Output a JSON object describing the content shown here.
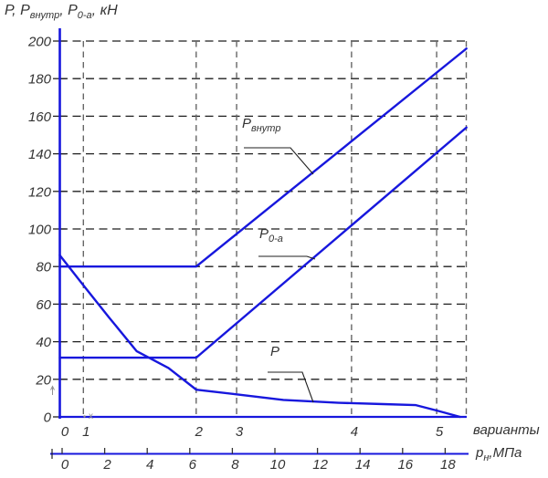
{
  "page": {
    "background": "#ffffff"
  },
  "title": {
    "p1": "Р, Р",
    "sub1": "внутр",
    "p2": ", Р",
    "sub2": "0-а",
    "p3": ", кН"
  },
  "curve_labels": {
    "p_vnutr": {
      "main": "Р",
      "sub": "внутр"
    },
    "p_0a": {
      "main": "Р",
      "sub": "0-а"
    },
    "p": {
      "main": "Р",
      "sub": ""
    }
  },
  "axis_labels": {
    "variants": "варианты",
    "pressure_main": "р",
    "pressure_sub": "н",
    "pressure_rest": ",МПа"
  },
  "origin_marker_x": "x",
  "colors": {
    "curve": "#1717dd",
    "axis": "#1717dd",
    "grid_horizontal": "#1f1f1f",
    "grid_vertical": "#666666",
    "leader": "#1f1f1f",
    "text": "#333333",
    "artifact": "#909090"
  },
  "chart_data": {
    "type": "line",
    "title": "Р, Рвнутр, Р0-а, кН",
    "ylabel": "Р, Рвнутр, Р0-а, кН",
    "ylim": [
      0,
      200
    ],
    "y_ticks": [
      0,
      20,
      40,
      60,
      80,
      100,
      120,
      140,
      160,
      180,
      200
    ],
    "grid": "dashed",
    "legend_position": "inline-labels-with-leaders",
    "x_axes": [
      {
        "label": "варианты",
        "ticks": [
          "0",
          "1",
          "2",
          "3",
          "4",
          "5"
        ],
        "positions_mpa": [
          0,
          1.0,
          6.3,
          8.2,
          13.6,
          17.6
        ]
      },
      {
        "label": "рн,МПа",
        "ticks": [
          0,
          2,
          4,
          6,
          8,
          10,
          12,
          14,
          16,
          18
        ],
        "xlim": [
          0,
          19
        ]
      }
    ],
    "series": [
      {
        "name": "Рвнутр",
        "x_mpa": [
          0,
          6.3,
          19
        ],
        "values": [
          80,
          80,
          196
        ]
      },
      {
        "name": "Р0-а",
        "x_mpa": [
          0,
          6.3,
          19
        ],
        "values": [
          31.5,
          31.5,
          154
        ]
      },
      {
        "name": "Р",
        "x_mpa": [
          0,
          1.0,
          2.2,
          3.5,
          5.0,
          6.3,
          8.2,
          10.4,
          13.0,
          15.1,
          16.6,
          17.6,
          18.7
        ],
        "values": [
          86,
          70,
          53,
          35,
          26,
          14.5,
          12,
          9,
          7.5,
          6.8,
          6.3,
          3.4,
          0
        ]
      }
    ]
  }
}
